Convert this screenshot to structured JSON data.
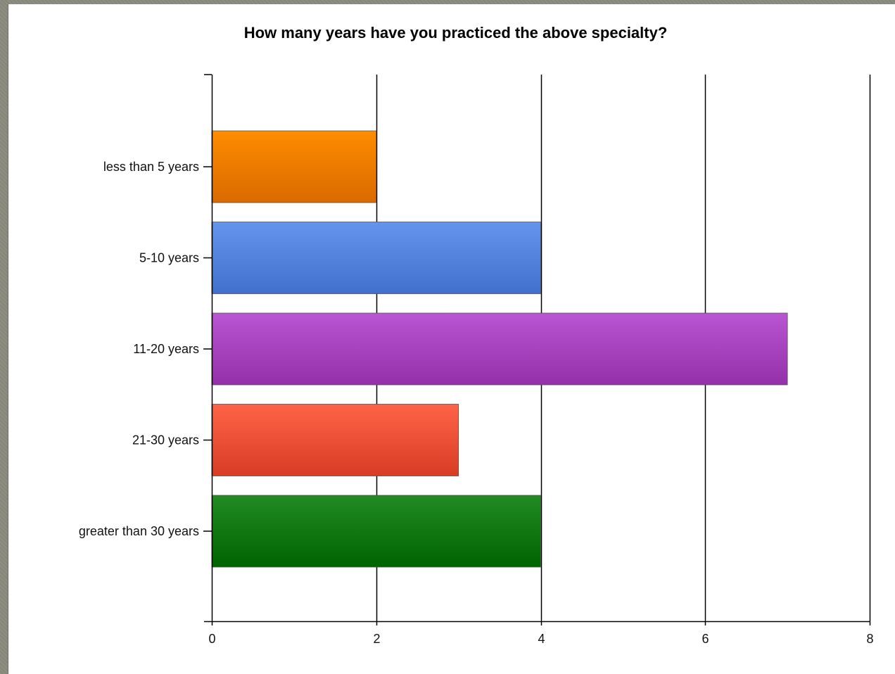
{
  "chart_data": {
    "type": "bar",
    "orientation": "horizontal",
    "title": "How many years have you practiced the above specialty?",
    "xlabel": "",
    "ylabel": "",
    "categories": [
      "less than 5 years",
      "5-10 years",
      "11-20 years",
      "21-30 years",
      "greater than 30 years"
    ],
    "values": [
      2,
      4,
      7,
      3,
      4
    ],
    "xlim": [
      0,
      8
    ],
    "xticks": [
      0,
      2,
      4,
      6,
      8
    ],
    "grid": true,
    "legend": "none",
    "colors": [
      {
        "top": "#ff8c00",
        "bottom": "#d96a00"
      },
      {
        "top": "#6495ed",
        "bottom": "#4070cc"
      },
      {
        "top": "#ba55d3",
        "bottom": "#9430a8"
      },
      {
        "top": "#ff6347",
        "bottom": "#d83c24"
      },
      {
        "top": "#228b22",
        "bottom": "#006400"
      }
    ]
  }
}
